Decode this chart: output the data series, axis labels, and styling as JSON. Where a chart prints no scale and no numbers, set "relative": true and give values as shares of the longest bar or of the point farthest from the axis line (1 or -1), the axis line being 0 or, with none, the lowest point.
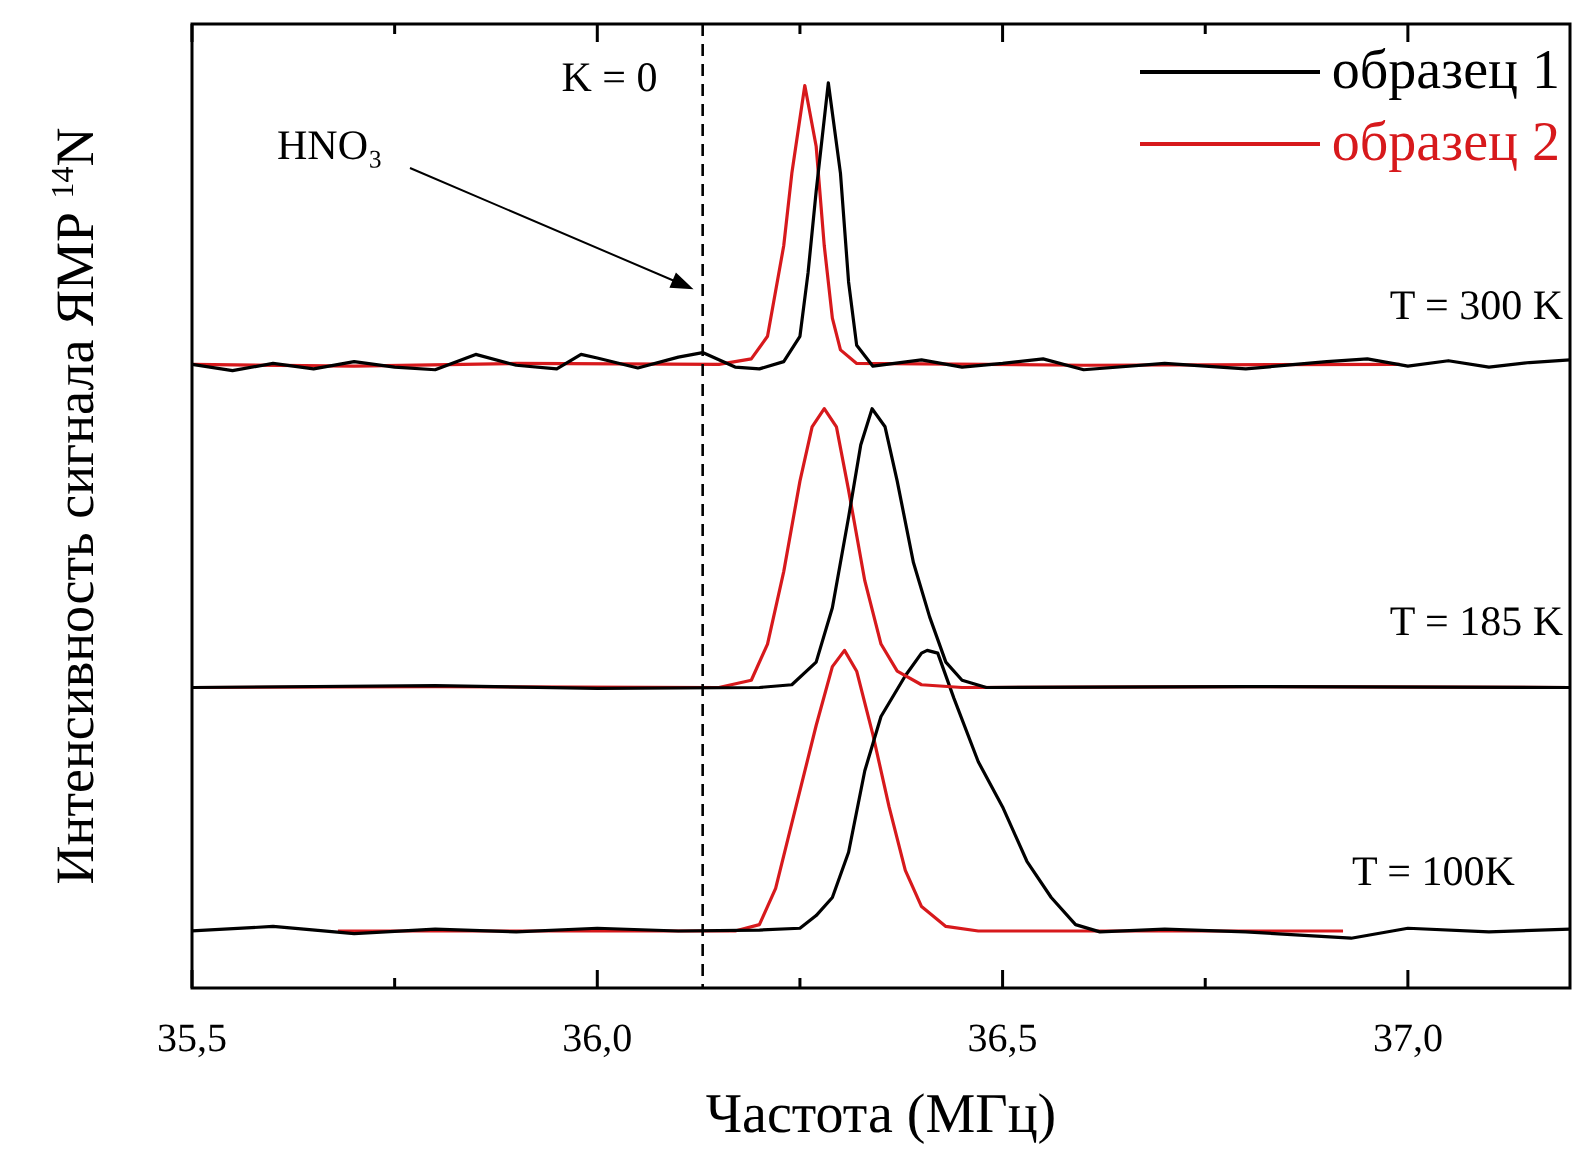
{
  "chart_data": {
    "type": "line",
    "relative": true,
    "xlabel": "Частота (МГц)",
    "ylabel": "Интенсивность сигнала ЯМР $^{14}$N",
    "xlim": [
      35.5,
      37.2
    ],
    "xticks": [
      {
        "value": 35.5,
        "label": "35,5"
      },
      {
        "value": 35.75,
        "label": null
      },
      {
        "value": 36.0,
        "label": "36,0"
      },
      {
        "value": 36.25,
        "label": null
      },
      {
        "value": 36.5,
        "label": "36,5"
      },
      {
        "value": 36.75,
        "label": null
      },
      {
        "value": 37.0,
        "label": "37,0"
      }
    ],
    "grid": false,
    "legend": "top right",
    "marker": "none",
    "line_style": "solid",
    "ref_lines": [
      {
        "axis": "x",
        "value": 36.13,
        "line_style": "dashed",
        "color": "#000000"
      }
    ],
    "annotations": [
      "K = 0",
      "HNO₃",
      "T = 300 K",
      "T = 185 K",
      "T = 100K"
    ],
    "series": [
      {
        "name": "образец 1",
        "color": "#000000",
        "x": [
          35.5,
          35.55,
          35.6,
          35.65,
          35.7,
          35.75,
          35.8,
          35.85,
          35.9,
          35.95,
          35.98,
          36.0,
          36.05,
          36.1,
          36.13,
          36.17,
          36.2,
          36.23,
          36.25,
          36.26,
          36.27,
          36.285,
          36.3,
          36.31,
          36.32,
          36.34,
          36.4,
          36.45,
          36.5,
          36.55,
          36.6,
          36.7,
          36.8,
          36.9,
          36.95,
          37.0,
          37.05,
          37.1,
          37.15,
          37.2
        ],
        "values": [
          0.689,
          0.682,
          0.69,
          0.684,
          0.692,
          0.686,
          0.683,
          0.7,
          0.688,
          0.684,
          0.7,
          0.696,
          0.685,
          0.697,
          0.702,
          0.686,
          0.684,
          0.692,
          0.72,
          0.79,
          0.88,
          1.0,
          0.9,
          0.78,
          0.71,
          0.687,
          0.694,
          0.686,
          0.69,
          0.695,
          0.683,
          0.69,
          0.684,
          0.692,
          0.695,
          0.687,
          0.693,
          0.686,
          0.691,
          0.694
        ]
      },
      {
        "name": "образец 2",
        "color": "#d7191c",
        "x": [
          35.5,
          35.7,
          35.9,
          36.15,
          36.19,
          36.21,
          36.23,
          36.24,
          36.256,
          36.27,
          36.28,
          36.29,
          36.3,
          36.32,
          36.6,
          36.99
        ],
        "values": [
          0.689,
          0.687,
          0.69,
          0.689,
          0.695,
          0.72,
          0.82,
          0.9,
          0.997,
          0.93,
          0.82,
          0.74,
          0.705,
          0.69,
          0.688,
          0.689
        ]
      },
      {
        "color": "#000000",
        "x": [
          35.5,
          35.8,
          36.0,
          36.2,
          36.24,
          36.27,
          36.29,
          36.31,
          36.325,
          36.339,
          36.355,
          36.37,
          36.39,
          36.41,
          36.43,
          36.45,
          36.48,
          36.8,
          37.2
        ],
        "values": [
          0.332,
          0.334,
          0.331,
          0.332,
          0.335,
          0.36,
          0.42,
          0.52,
          0.6,
          0.64,
          0.62,
          0.56,
          0.47,
          0.41,
          0.36,
          0.34,
          0.332,
          0.333,
          0.332
        ]
      },
      {
        "color": "#d7191c",
        "x": [
          35.5,
          35.8,
          36.15,
          36.19,
          36.21,
          36.23,
          36.25,
          36.265,
          36.28,
          36.295,
          36.31,
          36.33,
          36.35,
          36.37,
          36.4,
          36.45,
          36.8,
          37.2
        ],
        "values": [
          0.332,
          0.333,
          0.332,
          0.34,
          0.38,
          0.46,
          0.56,
          0.62,
          0.64,
          0.62,
          0.55,
          0.45,
          0.38,
          0.35,
          0.335,
          0.332,
          0.333,
          0.332
        ]
      },
      {
        "color": "#000000",
        "x": [
          35.5,
          35.6,
          35.7,
          35.8,
          35.9,
          36.0,
          36.1,
          36.2,
          36.25,
          36.27,
          36.29,
          36.31,
          36.33,
          36.35,
          36.38,
          36.4,
          36.407,
          36.42,
          36.44,
          36.47,
          36.5,
          36.53,
          36.56,
          36.59,
          36.62,
          36.7,
          36.8,
          36.93,
          37.0,
          37.1,
          37.2
        ],
        "values": [
          0.063,
          0.068,
          0.06,
          0.065,
          0.062,
          0.066,
          0.063,
          0.064,
          0.066,
          0.08,
          0.1,
          0.15,
          0.24,
          0.3,
          0.345,
          0.37,
          0.373,
          0.37,
          0.32,
          0.25,
          0.2,
          0.14,
          0.1,
          0.07,
          0.062,
          0.065,
          0.062,
          0.055,
          0.066,
          0.062,
          0.065
        ]
      },
      {
        "color": "#d7191c",
        "x": [
          35.68,
          36.0,
          36.17,
          36.2,
          36.22,
          36.245,
          36.27,
          36.29,
          36.305,
          36.32,
          36.34,
          36.36,
          36.38,
          36.4,
          36.43,
          36.47,
          36.7,
          36.92
        ],
        "values": [
          0.063,
          0.063,
          0.063,
          0.07,
          0.11,
          0.2,
          0.29,
          0.355,
          0.373,
          0.35,
          0.28,
          0.2,
          0.13,
          0.09,
          0.068,
          0.063,
          0.063,
          0.063
        ]
      }
    ]
  }
}
